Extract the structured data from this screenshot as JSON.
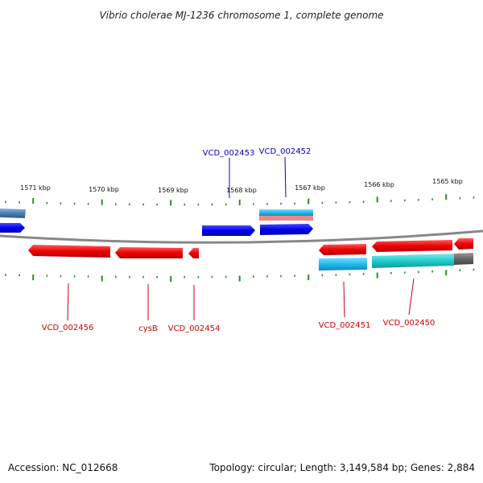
{
  "title": "Vibrio cholerae MJ-1236 chromosome 1, complete genome",
  "footer": {
    "accession": "Accession: NC_012668",
    "topology": "Topology: circular; Length: 3,149,584 bp; Genes: 2,884"
  },
  "colors": {
    "backbone": "#888888",
    "tick": "#2d8a2d",
    "forward_gene": "#0000ee",
    "reverse_gene": "#ee0000",
    "label_forward": "#0000cc",
    "label_reverse": "#cc0000",
    "cds_cyan": "#22bbee",
    "cds_teal": "#22cccc",
    "cds_pink": "#ee8888",
    "cds_gray": "#666666",
    "cds_steel": "#4a7fb0"
  },
  "ticks": [
    {
      "label": "1571 kbp"
    },
    {
      "label": "1570 kbp"
    },
    {
      "label": "1569 kbp"
    },
    {
      "label": "1568 kbp"
    },
    {
      "label": "1567 kbp"
    },
    {
      "label": "1566 kbp"
    },
    {
      "label": "1565 kbp"
    }
  ],
  "gene_labels": {
    "forward": [
      "VCD_002453",
      "VCD_002452"
    ],
    "reverse": [
      "VCD_002456",
      "cysB",
      "VCD_002454",
      "VCD_002451",
      "VCD_002450"
    ]
  }
}
